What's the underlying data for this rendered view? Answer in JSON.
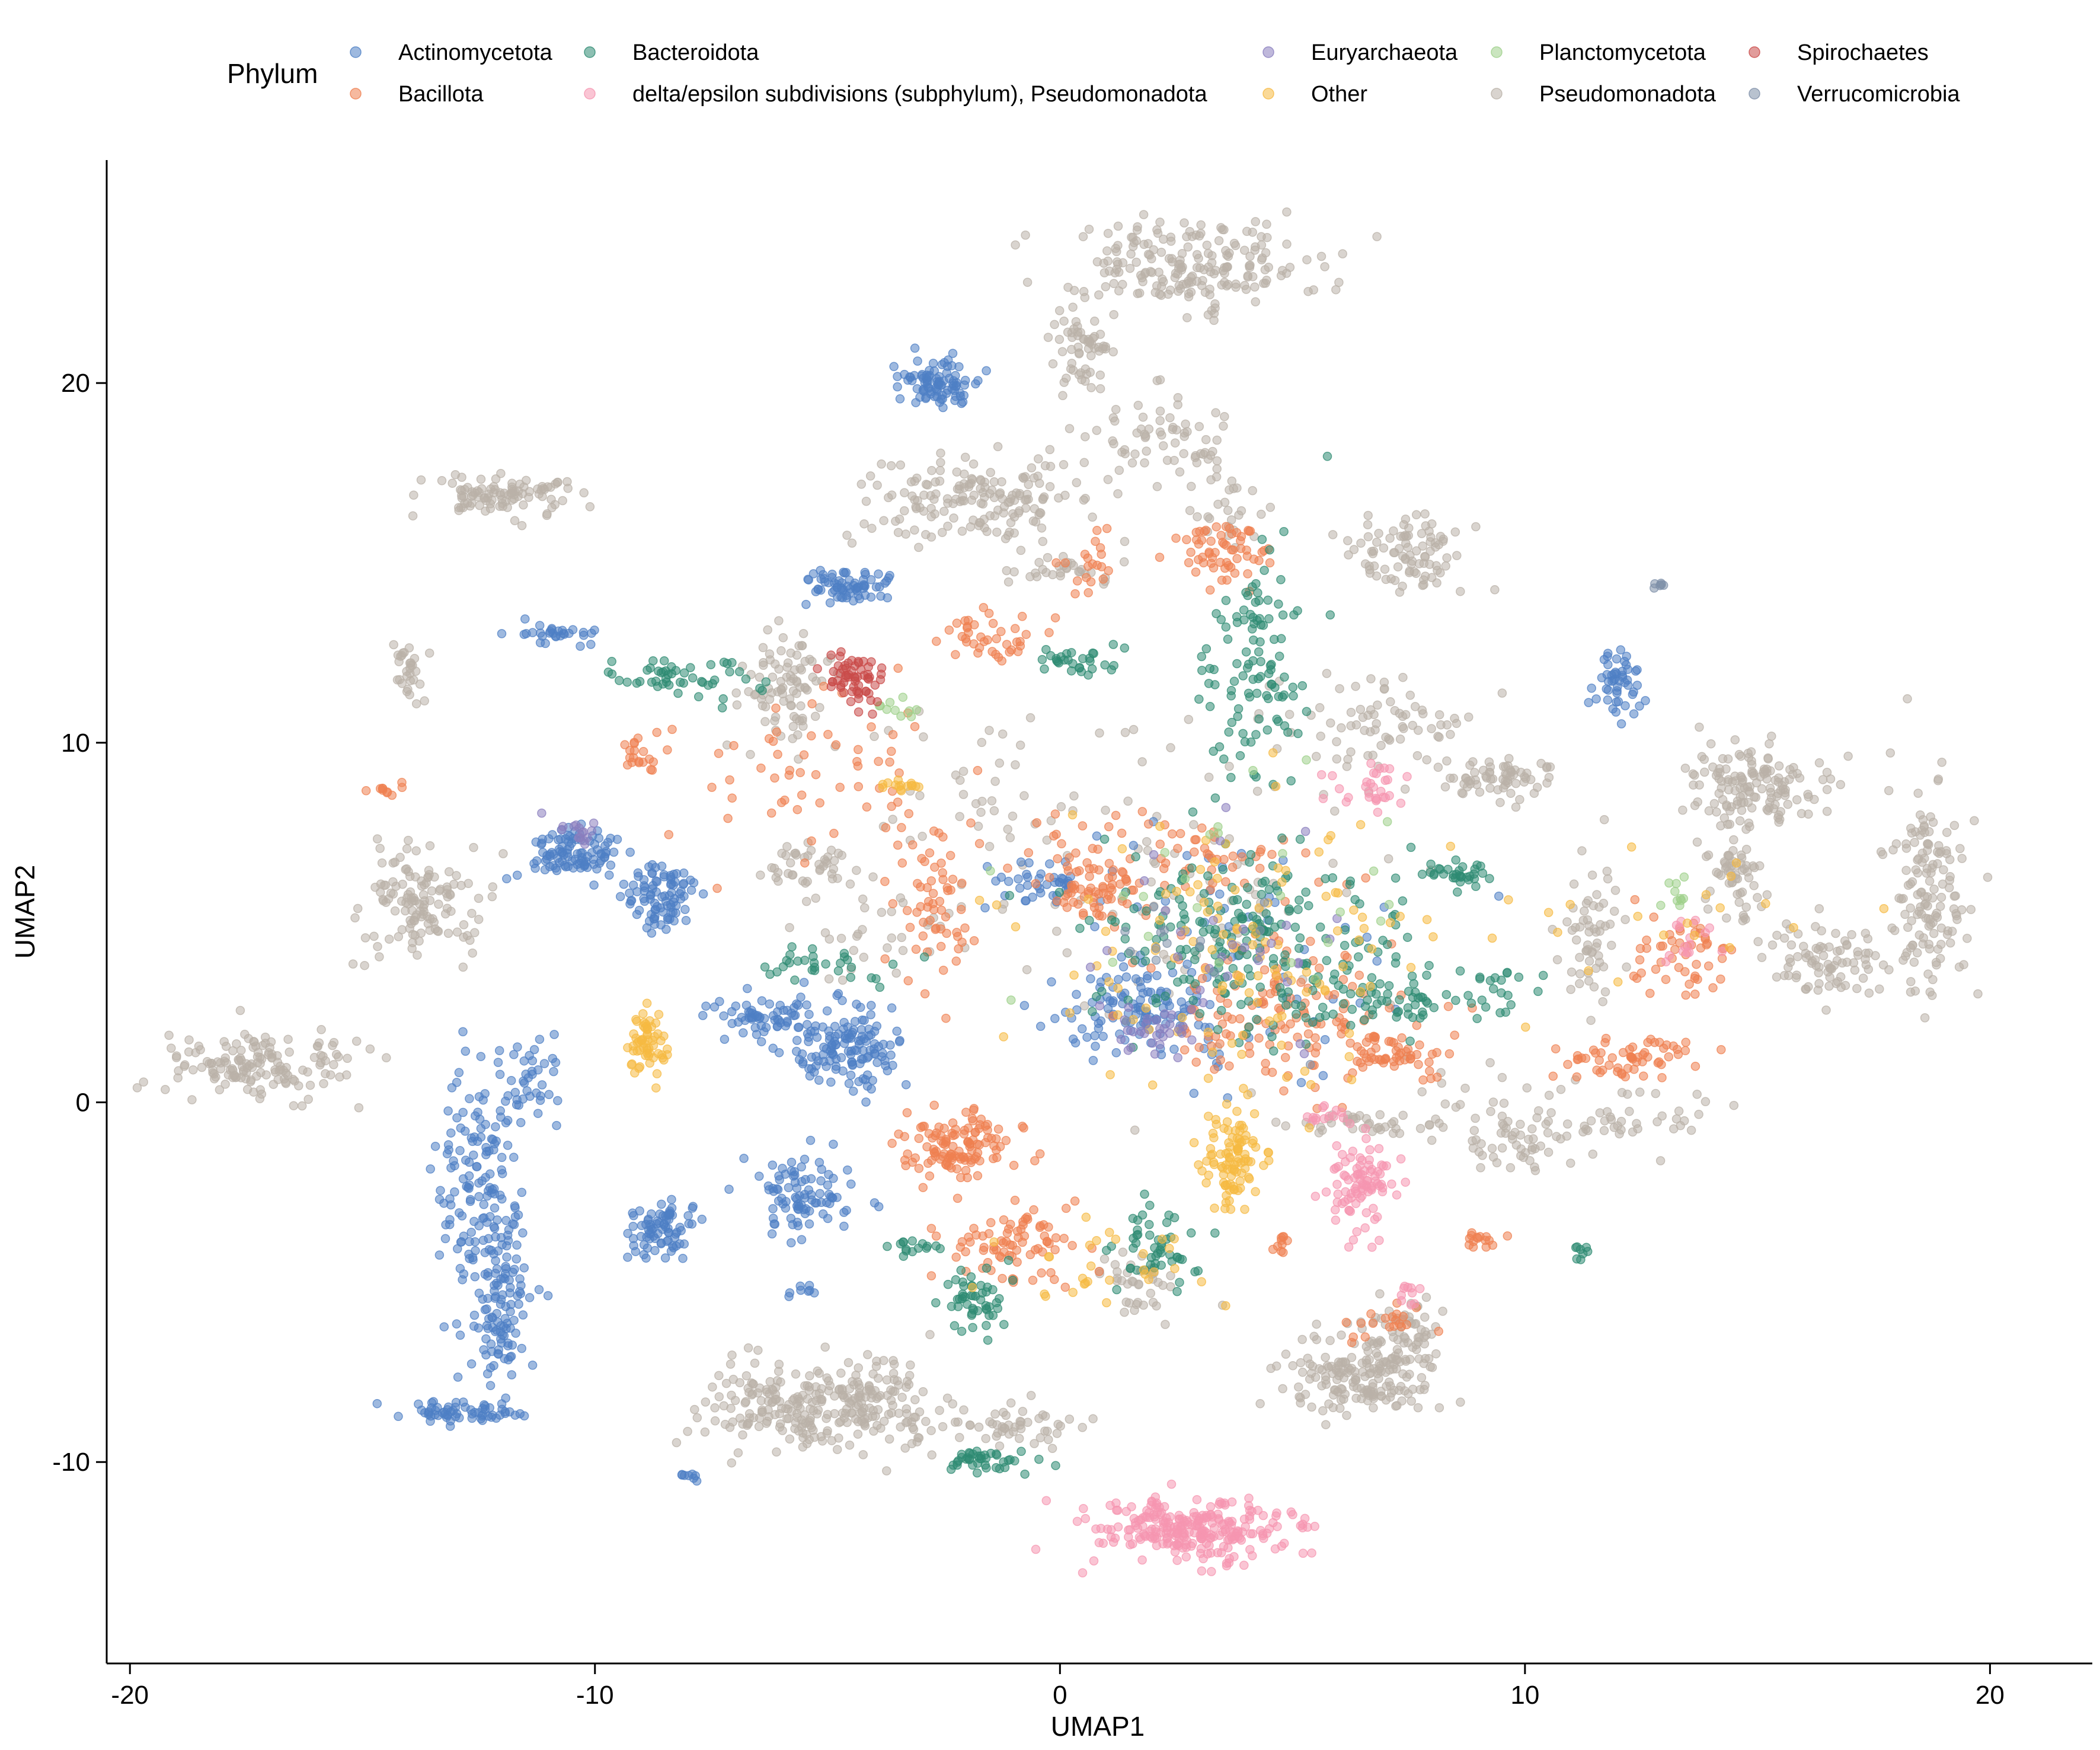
{
  "chart_data": {
    "type": "scatter",
    "xlabel": "UMAP1",
    "ylabel": "UMAP2",
    "xlim": [
      -20.5,
      22.2
    ],
    "ylim": [
      -15.6,
      26.2
    ],
    "x_ticks": [
      -20,
      -10,
      0,
      10,
      20
    ],
    "x_tick_labels": [
      "-20",
      "-10",
      "0",
      "10",
      "20"
    ],
    "y_ticks": [
      -10,
      0,
      10,
      20
    ],
    "y_tick_labels": [
      "-10",
      "0",
      "10",
      "20"
    ],
    "grid": false,
    "legend": {
      "title": "Phylum",
      "placement": "top",
      "columns": [
        [
          "Actinomycetota",
          "Bacillota"
        ],
        [
          "Bacteroidota",
          "delta/epsilon subdivisions (subphylum), Pseudomonadota"
        ],
        [
          "Euryarchaeota",
          "Other"
        ],
        [
          "Planctomycetota",
          "Pseudomonadota"
        ],
        [
          "Spirochaetes",
          "Verrucomicrobia"
        ]
      ]
    },
    "series": [
      {
        "name": "Actinomycetota",
        "color": "#4E7FC4",
        "clusters": [
          {
            "x": -2.5,
            "y": 20.0,
            "sx": 0.4,
            "sy": 0.3,
            "n": 90
          },
          {
            "x": -12.5,
            "y": -2.8,
            "sx": 0.5,
            "sy": 1.8,
            "n": 160
          },
          {
            "x": -12.0,
            "y": -6.0,
            "sx": 0.35,
            "sy": 1.2,
            "n": 90
          },
          {
            "x": -13.0,
            "y": -8.6,
            "sx": 0.6,
            "sy": 0.15,
            "n": 60
          },
          {
            "x": -11.3,
            "y": 0.4,
            "sx": 0.3,
            "sy": 0.6,
            "n": 40
          },
          {
            "x": -10.4,
            "y": 6.9,
            "sx": 0.5,
            "sy": 0.4,
            "n": 100
          },
          {
            "x": -8.6,
            "y": 5.7,
            "sx": 0.4,
            "sy": 0.5,
            "n": 90
          },
          {
            "x": -4.6,
            "y": 1.5,
            "sx": 0.6,
            "sy": 0.6,
            "n": 140
          },
          {
            "x": -6.5,
            "y": 2.4,
            "sx": 0.6,
            "sy": 0.3,
            "n": 60
          },
          {
            "x": -8.5,
            "y": -3.5,
            "sx": 0.4,
            "sy": 0.4,
            "n": 80
          },
          {
            "x": -5.5,
            "y": -2.5,
            "sx": 0.6,
            "sy": 0.6,
            "n": 90
          },
          {
            "x": -4.5,
            "y": 14.4,
            "sx": 0.5,
            "sy": 0.2,
            "n": 70
          },
          {
            "x": -10.9,
            "y": 13.0,
            "sx": 0.4,
            "sy": 0.15,
            "n": 30
          },
          {
            "x": 12.0,
            "y": 11.6,
            "sx": 0.3,
            "sy": 0.4,
            "n": 50
          },
          {
            "x": 1.5,
            "y": 2.5,
            "sx": 0.9,
            "sy": 0.7,
            "n": 110
          },
          {
            "x": -0.5,
            "y": 6.0,
            "sx": 0.5,
            "sy": 0.3,
            "n": 40
          },
          {
            "x": 4.0,
            "y": 4.0,
            "sx": 1.8,
            "sy": 1.8,
            "n": 60
          },
          {
            "x": -8.0,
            "y": -10.3,
            "sx": 0.15,
            "sy": 0.1,
            "n": 8
          },
          {
            "x": -5.5,
            "y": -5.2,
            "sx": 0.15,
            "sy": 0.1,
            "n": 8
          }
        ]
      },
      {
        "name": "Bacillota",
        "color": "#EF8050",
        "clusters": [
          {
            "x": 0.8,
            "y": 15.0,
            "sx": 0.3,
            "sy": 0.5,
            "n": 20
          },
          {
            "x": 3.5,
            "y": 15.2,
            "sx": 0.5,
            "sy": 0.5,
            "n": 60
          },
          {
            "x": -2.2,
            "y": -1.2,
            "sx": 0.6,
            "sy": 0.5,
            "n": 120
          },
          {
            "x": -1.0,
            "y": -4.0,
            "sx": 0.8,
            "sy": 0.6,
            "n": 80
          },
          {
            "x": 0.8,
            "y": 5.9,
            "sx": 0.5,
            "sy": 0.4,
            "n": 60
          },
          {
            "x": -2.8,
            "y": 5.5,
            "sx": 0.5,
            "sy": 1.0,
            "n": 60
          },
          {
            "x": 4.8,
            "y": 2.5,
            "sx": 1.2,
            "sy": 1.0,
            "n": 140
          },
          {
            "x": 7.2,
            "y": 1.3,
            "sx": 0.6,
            "sy": 0.3,
            "n": 50
          },
          {
            "x": 12.2,
            "y": 1.2,
            "sx": 0.8,
            "sy": 0.3,
            "n": 60
          },
          {
            "x": 13.5,
            "y": 4.0,
            "sx": 0.5,
            "sy": 0.6,
            "n": 50
          },
          {
            "x": -14.5,
            "y": 8.7,
            "sx": 0.15,
            "sy": 0.1,
            "n": 10
          },
          {
            "x": -9.0,
            "y": 9.6,
            "sx": 0.2,
            "sy": 0.3,
            "n": 20
          },
          {
            "x": -1.5,
            "y": 13.0,
            "sx": 0.6,
            "sy": 0.4,
            "n": 40
          },
          {
            "x": 2.5,
            "y": 7.0,
            "sx": 1.5,
            "sy": 0.6,
            "n": 70
          },
          {
            "x": 9.0,
            "y": -3.8,
            "sx": 0.2,
            "sy": 0.2,
            "n": 15
          },
          {
            "x": 4.7,
            "y": -3.9,
            "sx": 0.15,
            "sy": 0.15,
            "n": 10
          },
          {
            "x": 7.0,
            "y": -6.0,
            "sx": 0.4,
            "sy": 0.3,
            "n": 20
          },
          {
            "x": -5.0,
            "y": 9.0,
            "sx": 1.5,
            "sy": 1.2,
            "n": 60
          }
        ]
      },
      {
        "name": "Bacteroidota",
        "color": "#2E8B72",
        "clusters": [
          {
            "x": -8.0,
            "y": 11.8,
            "sx": 0.7,
            "sy": 0.25,
            "n": 50
          },
          {
            "x": 4.2,
            "y": 12.0,
            "sx": 0.6,
            "sy": 1.8,
            "n": 110
          },
          {
            "x": 4.2,
            "y": 4.3,
            "sx": 1.8,
            "sy": 1.3,
            "n": 220
          },
          {
            "x": -1.8,
            "y": -5.5,
            "sx": 0.3,
            "sy": 0.4,
            "n": 50
          },
          {
            "x": 2.0,
            "y": -4.0,
            "sx": 0.5,
            "sy": 0.6,
            "n": 50
          },
          {
            "x": -1.5,
            "y": -10.0,
            "sx": 0.5,
            "sy": 0.2,
            "n": 40
          },
          {
            "x": 8.6,
            "y": 6.4,
            "sx": 0.4,
            "sy": 0.2,
            "n": 30
          },
          {
            "x": 11.2,
            "y": -4.1,
            "sx": 0.1,
            "sy": 0.15,
            "n": 8
          },
          {
            "x": -3.0,
            "y": -4.0,
            "sx": 0.3,
            "sy": 0.15,
            "n": 15
          },
          {
            "x": 0.5,
            "y": 12.3,
            "sx": 0.6,
            "sy": 0.2,
            "n": 30
          },
          {
            "x": 7.0,
            "y": 2.8,
            "sx": 1.0,
            "sy": 0.3,
            "n": 50
          },
          {
            "x": -5.0,
            "y": 3.8,
            "sx": 1.0,
            "sy": 0.3,
            "n": 30
          },
          {
            "x": 9.4,
            "y": 3.0,
            "sx": 0.5,
            "sy": 0.4,
            "n": 20
          }
        ]
      },
      {
        "name": "delta/epsilon subdivisions (subphylum), Pseudomonadota",
        "color": "#F595B0",
        "clusters": [
          {
            "x": 2.8,
            "y": -11.9,
            "sx": 1.0,
            "sy": 0.45,
            "n": 260
          },
          {
            "x": 6.5,
            "y": -2.3,
            "sx": 0.35,
            "sy": 0.6,
            "n": 90
          },
          {
            "x": 6.6,
            "y": 8.8,
            "sx": 0.4,
            "sy": 0.3,
            "n": 30
          },
          {
            "x": 5.8,
            "y": -0.4,
            "sx": 0.3,
            "sy": 0.2,
            "n": 15
          },
          {
            "x": 7.5,
            "y": -5.2,
            "sx": 0.2,
            "sy": 0.15,
            "n": 10
          },
          {
            "x": 13.5,
            "y": 4.5,
            "sx": 0.3,
            "sy": 0.4,
            "n": 15
          }
        ]
      },
      {
        "name": "Euryarchaeota",
        "color": "#8A7EBE",
        "clusters": [
          {
            "x": 2.0,
            "y": 2.0,
            "sx": 0.5,
            "sy": 0.5,
            "n": 30
          },
          {
            "x": -10.3,
            "y": 7.5,
            "sx": 0.3,
            "sy": 0.2,
            "n": 15
          },
          {
            "x": 3.5,
            "y": 4.5,
            "sx": 1.5,
            "sy": 1.5,
            "n": 30
          }
        ]
      },
      {
        "name": "Other",
        "color": "#F6B942",
        "clusters": [
          {
            "x": -8.9,
            "y": 1.7,
            "sx": 0.2,
            "sy": 0.6,
            "n": 60
          },
          {
            "x": 3.7,
            "y": -1.5,
            "sx": 0.3,
            "sy": 0.8,
            "n": 100
          },
          {
            "x": -3.4,
            "y": 8.8,
            "sx": 0.2,
            "sy": 0.1,
            "n": 15
          },
          {
            "x": 4.0,
            "y": 4.0,
            "sx": 2.0,
            "sy": 2.0,
            "n": 120
          },
          {
            "x": 1.0,
            "y": -4.5,
            "sx": 1.0,
            "sy": 0.6,
            "n": 30
          },
          {
            "x": 13.0,
            "y": 5.0,
            "sx": 2.0,
            "sy": 1.0,
            "n": 20
          }
        ]
      },
      {
        "name": "Planctomycetota",
        "color": "#9ED08A",
        "clusters": [
          {
            "x": 4.0,
            "y": 6.0,
            "sx": 2.0,
            "sy": 2.0,
            "n": 25
          },
          {
            "x": -3.5,
            "y": 11.0,
            "sx": 0.3,
            "sy": 0.2,
            "n": 10
          },
          {
            "x": 13.3,
            "y": 6.0,
            "sx": 0.2,
            "sy": 0.4,
            "n": 10
          }
        ]
      },
      {
        "name": "Pseudomonadota",
        "color": "#B9B1A8",
        "clusters": [
          {
            "x": 2.7,
            "y": 23.3,
            "sx": 1.4,
            "sy": 0.6,
            "n": 200
          },
          {
            "x": 0.5,
            "y": 21.0,
            "sx": 0.3,
            "sy": 0.6,
            "n": 60
          },
          {
            "x": 2.0,
            "y": 18.5,
            "sx": 0.9,
            "sy": 0.6,
            "n": 60
          },
          {
            "x": 3.5,
            "y": 16.5,
            "sx": 0.4,
            "sy": 0.8,
            "n": 30
          },
          {
            "x": -1.7,
            "y": 16.8,
            "sx": 1.3,
            "sy": 0.6,
            "n": 170
          },
          {
            "x": -12.1,
            "y": 16.9,
            "sx": 0.8,
            "sy": 0.3,
            "n": 100
          },
          {
            "x": -13.7,
            "y": 5.5,
            "sx": 0.7,
            "sy": 0.7,
            "n": 130
          },
          {
            "x": -17.4,
            "y": 1.0,
            "sx": 1.0,
            "sy": 0.5,
            "n": 150
          },
          {
            "x": -5.6,
            "y": -8.5,
            "sx": 1.1,
            "sy": 0.6,
            "n": 200
          },
          {
            "x": -3.8,
            "y": -8.3,
            "sx": 0.6,
            "sy": 0.7,
            "n": 90
          },
          {
            "x": -1.0,
            "y": -9.0,
            "sx": 0.8,
            "sy": 0.3,
            "n": 50
          },
          {
            "x": 6.5,
            "y": -7.6,
            "sx": 0.8,
            "sy": 0.6,
            "n": 180
          },
          {
            "x": 7.5,
            "y": -6.5,
            "sx": 0.4,
            "sy": 0.6,
            "n": 50
          },
          {
            "x": 15.0,
            "y": 8.8,
            "sx": 0.8,
            "sy": 0.5,
            "n": 140
          },
          {
            "x": 14.5,
            "y": 6.2,
            "sx": 0.3,
            "sy": 0.8,
            "n": 60
          },
          {
            "x": 16.5,
            "y": 4.0,
            "sx": 0.8,
            "sy": 0.5,
            "n": 90
          },
          {
            "x": 18.7,
            "y": 6.0,
            "sx": 0.4,
            "sy": 1.5,
            "n": 140
          },
          {
            "x": 7.5,
            "y": 15.2,
            "sx": 0.7,
            "sy": 0.6,
            "n": 90
          },
          {
            "x": 9.5,
            "y": 9.0,
            "sx": 0.6,
            "sy": 0.3,
            "n": 70
          },
          {
            "x": 7.0,
            "y": 10.5,
            "sx": 1.2,
            "sy": 0.6,
            "n": 70
          },
          {
            "x": 11.5,
            "y": 4.5,
            "sx": 0.3,
            "sy": 1.0,
            "n": 60
          },
          {
            "x": -5.8,
            "y": 11.5,
            "sx": 0.5,
            "sy": 0.8,
            "n": 90
          },
          {
            "x": -5.5,
            "y": 6.5,
            "sx": 0.4,
            "sy": 0.3,
            "n": 40
          },
          {
            "x": -14.0,
            "y": 12.0,
            "sx": 0.2,
            "sy": 0.4,
            "n": 30
          },
          {
            "x": 0.0,
            "y": 14.8,
            "sx": 0.5,
            "sy": 0.2,
            "n": 30
          },
          {
            "x": 6.5,
            "y": -0.6,
            "sx": 1.0,
            "sy": 0.2,
            "n": 40
          },
          {
            "x": 9.7,
            "y": -1.2,
            "sx": 0.6,
            "sy": 0.4,
            "n": 40
          },
          {
            "x": 12.5,
            "y": -0.5,
            "sx": 0.8,
            "sy": 0.4,
            "n": 40
          },
          {
            "x": 1.8,
            "y": -5.0,
            "sx": 0.5,
            "sy": 0.5,
            "n": 40
          },
          {
            "x": 3.0,
            "y": 6.0,
            "sx": 2.2,
            "sy": 2.2,
            "n": 90
          },
          {
            "x": 9.0,
            "y": 0.0,
            "sx": 1.0,
            "sy": 0.5,
            "n": 30
          },
          {
            "x": -2.0,
            "y": 8.5,
            "sx": 1.2,
            "sy": 1.5,
            "n": 40
          },
          {
            "x": -4.0,
            "y": 5.0,
            "sx": 0.8,
            "sy": 0.8,
            "n": 30
          }
        ]
      },
      {
        "name": "Spirochaetes",
        "color": "#C94A48",
        "clusters": [
          {
            "x": -4.4,
            "y": 11.8,
            "sx": 0.3,
            "sy": 0.35,
            "n": 60
          }
        ]
      },
      {
        "name": "Verrucomicrobia",
        "color": "#7E8FA8",
        "clusters": [
          {
            "x": 12.9,
            "y": 14.4,
            "sx": 0.1,
            "sy": 0.05,
            "n": 6
          },
          {
            "x": 3.0,
            "y": 3.5,
            "sx": 1.5,
            "sy": 1.5,
            "n": 15
          }
        ]
      }
    ]
  }
}
